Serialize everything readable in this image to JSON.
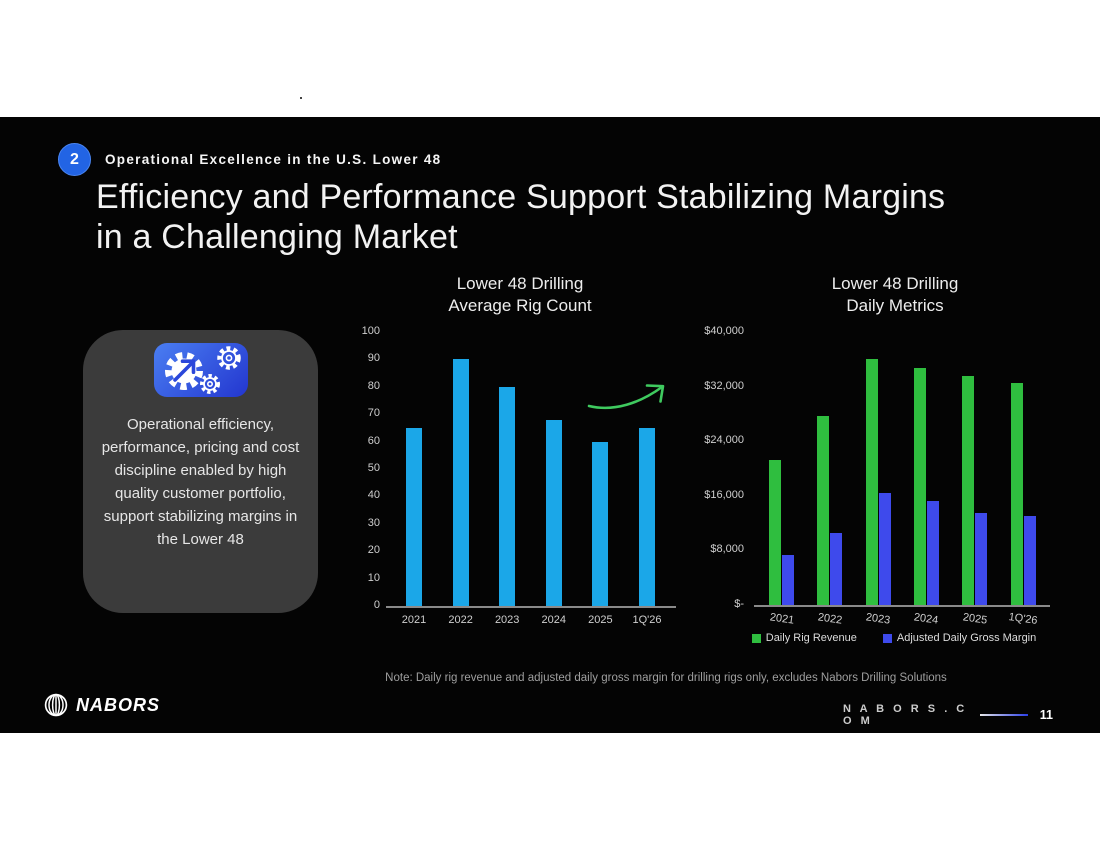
{
  "page": {
    "stray_dot": "."
  },
  "slide": {
    "kicker": {
      "badge": "2",
      "label": "Operational Excellence in the U.S. Lower 48"
    },
    "title_line1": "Efficiency and Performance Support Stabilizing Margins",
    "title_line2": "in a Challenging Market",
    "card": {
      "icon": "gears-arrow-icon",
      "text": "Operational efficiency, performance, pricing and cost discipline enabled by high quality customer portfolio, support stabilizing margins in the Lower 48"
    },
    "note": "Note: Daily rig revenue and adjusted daily gross margin for drilling rigs only, excludes Nabors Drilling Solutions",
    "footer": {
      "brand": "NABORS",
      "site": "N A B O R S . C O M",
      "page_number": "11"
    }
  },
  "colors": {
    "slide_bg": "#040404",
    "badge_blue": "#2264e4",
    "card_bg": "#3b3b3b",
    "tile_gradient_start": "#4a7ef2",
    "tile_gradient_end": "#2336cf",
    "rig_count_bar": "#1ba7e8",
    "revenue_green": "#2fbe3f",
    "margin_blue": "#3e4aec",
    "arrow_green": "#3fca5f",
    "axis_gray": "#8a8a8a"
  },
  "chart_data": [
    {
      "type": "bar",
      "title_lines": [
        "Lower 48 Drilling",
        "Average Rig Count"
      ],
      "categories": [
        "2021",
        "2022",
        "2023",
        "2024",
        "2025",
        "1Q'26"
      ],
      "values": [
        65,
        90,
        80,
        68,
        60,
        65
      ],
      "bar_color": "#1ba7e8",
      "ylim": [
        0,
        100
      ],
      "yticks": [
        100,
        90,
        80,
        70,
        60,
        50,
        40,
        30,
        20,
        10,
        0
      ],
      "grid": false,
      "annotation": "upward-trend-arrow"
    },
    {
      "type": "bar",
      "title_lines": [
        "Lower 48 Drilling",
        "Daily Metrics"
      ],
      "categories": [
        "2021",
        "2022",
        "2023",
        "2024",
        "2025",
        "1Q'26"
      ],
      "series": [
        {
          "name": "Daily Rig Revenue",
          "color": "#2fbe3f",
          "values": [
            21300,
            27700,
            36000,
            34700,
            33500,
            32500
          ]
        },
        {
          "name": "Adjusted Daily Gross Margin",
          "color": "#3e4aec",
          "values": [
            7300,
            10600,
            16400,
            15300,
            13500,
            13000
          ]
        }
      ],
      "ylim": [
        0,
        40000
      ],
      "ytick_values": [
        40000,
        32000,
        24000,
        16000,
        8000,
        0
      ],
      "ytick_labels": [
        "$40,000",
        "$32,000",
        "$24,000",
        "$16,000",
        "$8,000",
        "$-"
      ],
      "grid": false,
      "legend_position": "bottom"
    }
  ]
}
